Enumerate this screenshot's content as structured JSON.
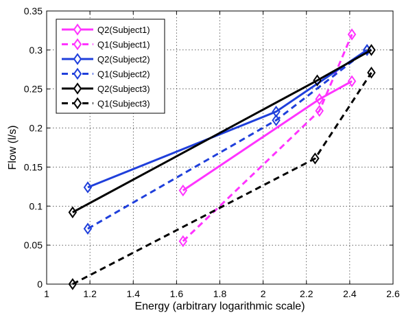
{
  "chart_data": {
    "type": "line",
    "title": "",
    "xlabel": "Energy (arbitrary logarithmic scale)",
    "ylabel": "Flow (l/s)",
    "xlim": [
      1,
      2.6
    ],
    "ylim": [
      0,
      0.35
    ],
    "xticks": [
      1,
      1.2,
      1.4,
      1.6,
      1.8,
      2,
      2.2,
      2.4,
      2.6
    ],
    "xtick_labels": [
      "1",
      "1.2",
      "1.4",
      "1.6",
      "1.8",
      "2",
      "2.2",
      "2.4",
      "2.6"
    ],
    "yticks": [
      0,
      0.05,
      0.1,
      0.15,
      0.2,
      0.25,
      0.3,
      0.35
    ],
    "ytick_labels": [
      "0",
      "0.05",
      "0.1",
      "0.15",
      "0.2",
      "0.25",
      "0.3",
      "0.35"
    ],
    "grid": true,
    "legend_position": "top-left",
    "series": [
      {
        "name": "Q2(Subject1)",
        "color": "#ff33ff",
        "style": "solid",
        "marker": "diamond",
        "x": [
          1.63,
          2.26,
          2.41
        ],
        "y": [
          0.12,
          0.237,
          0.26
        ]
      },
      {
        "name": "Q1(Subject1)",
        "color": "#ff33ff",
        "style": "dashed",
        "marker": "diamond",
        "x": [
          1.63,
          2.26,
          2.41
        ],
        "y": [
          0.055,
          0.222,
          0.32
        ]
      },
      {
        "name": "Q2(Subject2)",
        "color": "#1f3fdb",
        "style": "solid",
        "marker": "diamond",
        "x": [
          1.19,
          2.06,
          2.48
        ],
        "y": [
          0.124,
          0.221,
          0.3
        ]
      },
      {
        "name": "Q1(Subject2)",
        "color": "#1f3fdb",
        "style": "dashed",
        "marker": "diamond",
        "x": [
          1.19,
          2.06,
          2.48
        ],
        "y": [
          0.071,
          0.21,
          0.3
        ]
      },
      {
        "name": "Q2(Subject3)",
        "color": "#000000",
        "style": "solid",
        "marker": "diamond",
        "x": [
          1.12,
          2.25,
          2.5
        ],
        "y": [
          0.092,
          0.261,
          0.3
        ]
      },
      {
        "name": "Q1(Subject3)",
        "color": "#000000",
        "style": "dashed",
        "marker": "diamond",
        "x": [
          1.12,
          2.24,
          2.5
        ],
        "y": [
          0.0,
          0.161,
          0.271
        ]
      }
    ]
  }
}
